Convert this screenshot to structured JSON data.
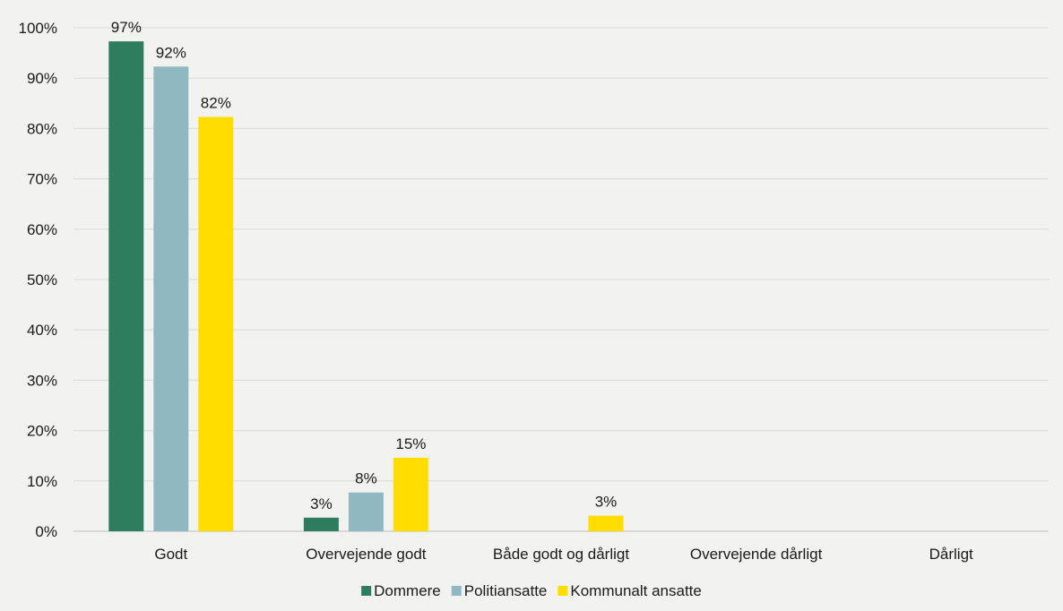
{
  "chart_data": {
    "type": "bar",
    "title": "",
    "xlabel": "",
    "ylabel": "",
    "ylim": [
      0,
      100
    ],
    "yticks": [
      0,
      10,
      20,
      30,
      40,
      50,
      60,
      70,
      80,
      90,
      100
    ],
    "tick_suffix": "%",
    "grid": true,
    "legend_position": "bottom-center",
    "categories": [
      "Godt",
      "Overvejende godt",
      "Både godt og dårligt",
      "Overvejende dårligt",
      "Dårligt"
    ],
    "series": [
      {
        "name": "Dommere",
        "color": "#2e7d5e",
        "values": [
          97.3,
          2.7,
          0,
          0,
          0
        ],
        "labels": [
          "97%",
          "3%",
          "",
          "",
          ""
        ]
      },
      {
        "name": "Politiansatte",
        "color": "#8fb8c0",
        "values": [
          92.3,
          7.7,
          0,
          0,
          0
        ],
        "labels": [
          "92%",
          "8%",
          "",
          "",
          ""
        ]
      },
      {
        "name": "Kommunalt ansatte",
        "color": "#ffdd00",
        "values": [
          82.3,
          14.6,
          3.1,
          0,
          0
        ],
        "labels": [
          "82%",
          "15%",
          "3%",
          "",
          ""
        ]
      }
    ]
  }
}
